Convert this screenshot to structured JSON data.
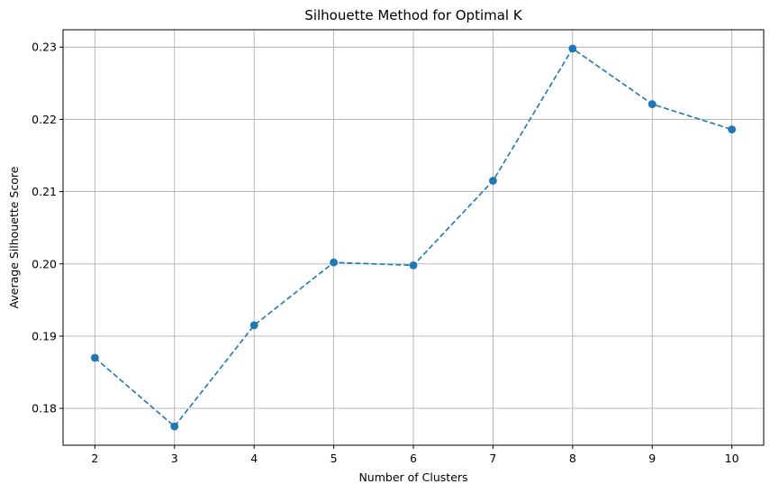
{
  "chart_data": {
    "type": "line",
    "title": "Silhouette Method for Optimal K",
    "xlabel": "Number of Clusters",
    "ylabel": "Average Silhouette Score",
    "x": [
      2,
      3,
      4,
      5,
      6,
      7,
      8,
      9,
      10
    ],
    "series": [
      {
        "values": [
          0.187,
          0.1775,
          0.1915,
          0.2002,
          0.1998,
          0.2115,
          0.2298,
          0.2221,
          0.2186
        ]
      }
    ],
    "xlim": [
      1.6,
      10.4
    ],
    "ylim": [
      0.1749,
      0.2324
    ],
    "xticks": [
      "2",
      "3",
      "4",
      "5",
      "6",
      "7",
      "8",
      "9",
      "10"
    ],
    "yticks": [
      "0.18",
      "0.19",
      "0.20",
      "0.21",
      "0.22",
      "0.23"
    ],
    "grid": true,
    "line_style": "dashed",
    "marker": "circle",
    "colors": {
      "series": "#1f77b4",
      "grid": "#b0b0b0",
      "axes": "#000000"
    }
  }
}
